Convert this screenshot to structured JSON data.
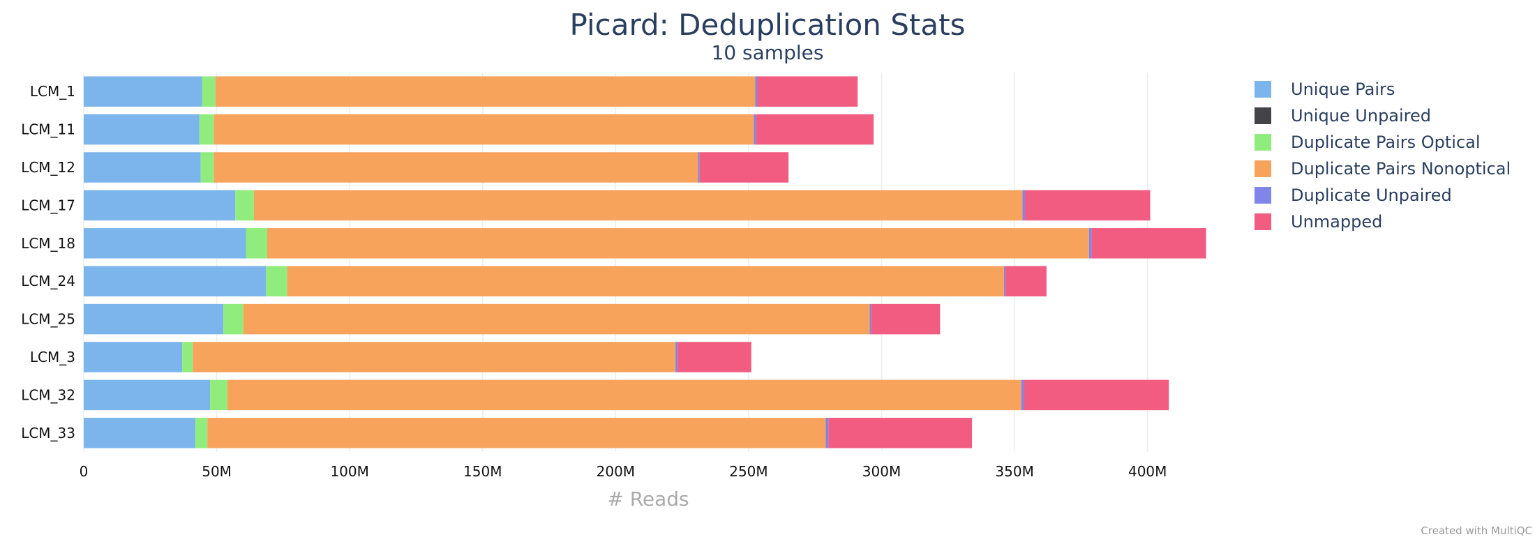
{
  "chart_data": {
    "type": "bar",
    "orientation": "horizontal",
    "stacked": true,
    "title": "Picard: Deduplication Stats",
    "subtitle": "10 samples",
    "xlabel": "# Reads",
    "xlim": [
      0,
      425000000
    ],
    "xticks": [
      {
        "value": 0,
        "label": "0"
      },
      {
        "value": 50000000,
        "label": "50M"
      },
      {
        "value": 100000000,
        "label": "100M"
      },
      {
        "value": 150000000,
        "label": "150M"
      },
      {
        "value": 200000000,
        "label": "200M"
      },
      {
        "value": 250000000,
        "label": "250M"
      },
      {
        "value": 300000000,
        "label": "300M"
      },
      {
        "value": 350000000,
        "label": "350M"
      },
      {
        "value": 400000000,
        "label": "400M"
      }
    ],
    "grid": true,
    "legend_position": "right",
    "categories": [
      "LCM_1",
      "LCM_11",
      "LCM_12",
      "LCM_17",
      "LCM_18",
      "LCM_24",
      "LCM_25",
      "LCM_3",
      "LCM_32",
      "LCM_33"
    ],
    "series": [
      {
        "name": "Unique Pairs",
        "color": "#7cb5ec",
        "values": [
          44500000,
          43500000,
          44000000,
          57000000,
          61000000,
          68500000,
          52500000,
          37000000,
          47500000,
          42000000
        ]
      },
      {
        "name": "Unique Unpaired",
        "color": "#434348",
        "values": [
          0,
          0,
          0,
          0,
          0,
          0,
          0,
          0,
          0,
          0
        ]
      },
      {
        "name": "Duplicate Pairs Optical",
        "color": "#90ed7d",
        "values": [
          5000000,
          5500000,
          5000000,
          7000000,
          8000000,
          8000000,
          7500000,
          4000000,
          6500000,
          4500000
        ]
      },
      {
        "name": "Duplicate Pairs Nonoptical",
        "color": "#f7a35c",
        "values": [
          203000000,
          203000000,
          182000000,
          289000000,
          309000000,
          269500000,
          235500000,
          181500000,
          298500000,
          232500000
        ]
      },
      {
        "name": "Duplicate Unpaired",
        "color": "#8085e9",
        "values": [
          800000,
          800000,
          600000,
          900000,
          1000000,
          500000,
          600000,
          800000,
          1000000,
          1000000
        ]
      },
      {
        "name": "Unmapped",
        "color": "#f15c80",
        "values": [
          37700000,
          44200000,
          33400000,
          47100000,
          43000000,
          15500000,
          25900000,
          27700000,
          54500000,
          54000000
        ]
      }
    ]
  },
  "credit": "Created with MultiQC"
}
